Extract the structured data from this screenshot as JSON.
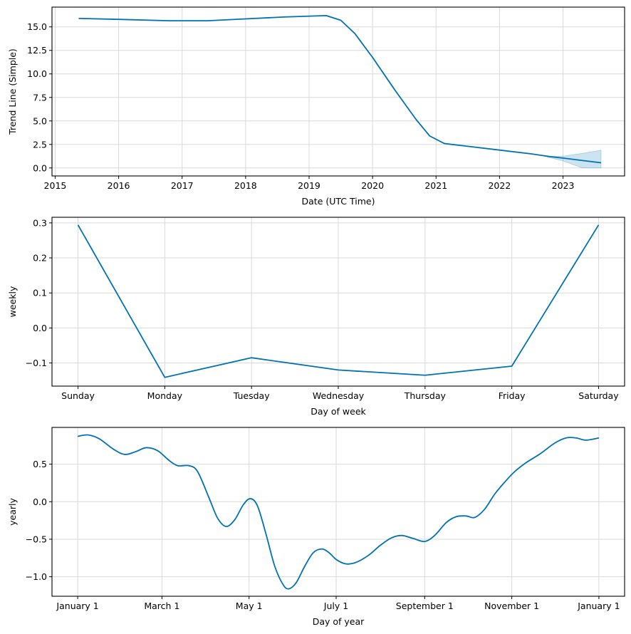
{
  "colors": {
    "line": "#0072b2",
    "band": "#0072b2",
    "grid": "#d9d9d9"
  },
  "chart_data": [
    {
      "type": "line",
      "title": "",
      "xlabel": "Date (UTC Time)",
      "ylabel": "Trend Line (Simple)",
      "xlim": [
        2014.95,
        2023.97
      ],
      "ylim": [
        -0.85,
        17.1
      ],
      "grid": true,
      "x_ticks": [
        2015,
        2016,
        2017,
        2018,
        2019,
        2020,
        2021,
        2022,
        2023
      ],
      "x_tick_labels": [
        "2015",
        "2016",
        "2017",
        "2018",
        "2019",
        "2020",
        "2021",
        "2022",
        "2023"
      ],
      "y_ticks": [
        0.0,
        2.5,
        5.0,
        7.5,
        10.0,
        12.5,
        15.0
      ],
      "y_tick_labels": [
        "0.0",
        "2.5",
        "5.0",
        "7.5",
        "10.0",
        "12.5",
        "15.0"
      ],
      "series": [
        {
          "name": "trend",
          "x": [
            2015.37,
            2016.0,
            2016.8,
            2017.4,
            2018.0,
            2018.6,
            2019.27,
            2019.5,
            2019.72,
            2020.0,
            2020.35,
            2020.68,
            2020.9,
            2021.13,
            2021.5,
            2022.0,
            2022.5,
            2022.8,
            2023.0,
            2023.3,
            2023.6
          ],
          "y": [
            15.9,
            15.8,
            15.65,
            15.65,
            15.85,
            16.05,
            16.2,
            15.7,
            14.3,
            11.75,
            8.3,
            5.2,
            3.4,
            2.6,
            2.3,
            1.9,
            1.5,
            1.2,
            1.05,
            0.8,
            0.55
          ]
        }
      ],
      "uncertainty_band": {
        "x": [
          2022.75,
          2023.0,
          2023.3,
          2023.6
        ],
        "upper": [
          1.25,
          1.25,
          1.55,
          1.9
        ],
        "lower": [
          1.15,
          0.75,
          0.0,
          0.0
        ]
      }
    },
    {
      "type": "line",
      "title": "",
      "xlabel": "Day of week",
      "ylabel": "weekly",
      "ylim": [
        -0.166,
        0.316
      ],
      "grid": true,
      "categories": [
        "Sunday",
        "Monday",
        "Tuesday",
        "Wednesday",
        "Thursday",
        "Friday",
        "Saturday"
      ],
      "y_ticks": [
        -0.1,
        0.0,
        0.1,
        0.2,
        0.3
      ],
      "y_tick_labels": [
        "−0.1",
        "0.0",
        "0.1",
        "0.2",
        "0.3"
      ],
      "series": [
        {
          "name": "weekly",
          "values": [
            0.294,
            -0.141,
            -0.085,
            -0.12,
            -0.135,
            -0.109,
            0.294
          ]
        }
      ]
    },
    {
      "type": "line",
      "title": "",
      "xlabel": "Day of year",
      "ylabel": "yearly",
      "xlim": [
        -18,
        383
      ],
      "ylim": [
        -1.26,
        0.99
      ],
      "grid": true,
      "x_ticks": [
        0,
        59,
        120,
        181,
        243,
        304,
        365
      ],
      "x_tick_labels": [
        "January 1",
        "March 1",
        "May 1",
        "July 1",
        "September 1",
        "November 1",
        "January 1"
      ],
      "y_ticks": [
        -1.0,
        -0.5,
        0.0,
        0.5
      ],
      "y_tick_labels": [
        "−1.0",
        "−0.5",
        "0.0",
        "0.5"
      ],
      "series": [
        {
          "name": "yearly",
          "x": [
            0,
            7,
            15,
            25,
            33,
            41,
            48,
            56,
            64,
            70,
            78,
            84,
            92,
            98,
            104,
            110,
            116,
            121,
            126,
            132,
            138,
            144,
            148,
            153,
            159,
            165,
            171,
            176,
            181,
            186,
            190,
            196,
            204,
            212,
            220,
            227,
            235,
            243,
            250,
            258,
            265,
            272,
            278,
            285,
            292,
            299,
            306,
            314,
            324,
            334,
            342,
            349,
            356,
            365
          ],
          "y": [
            0.87,
            0.89,
            0.84,
            0.7,
            0.63,
            0.67,
            0.72,
            0.68,
            0.55,
            0.48,
            0.48,
            0.4,
            0.05,
            -0.22,
            -0.33,
            -0.24,
            -0.04,
            0.04,
            -0.06,
            -0.44,
            -0.86,
            -1.11,
            -1.16,
            -1.08,
            -0.86,
            -0.68,
            -0.63,
            -0.68,
            -0.77,
            -0.82,
            -0.83,
            -0.8,
            -0.71,
            -0.58,
            -0.48,
            -0.45,
            -0.49,
            -0.53,
            -0.45,
            -0.28,
            -0.2,
            -0.19,
            -0.21,
            -0.1,
            0.1,
            0.26,
            0.4,
            0.52,
            0.64,
            0.78,
            0.85,
            0.85,
            0.82,
            0.85
          ]
        }
      ]
    }
  ]
}
